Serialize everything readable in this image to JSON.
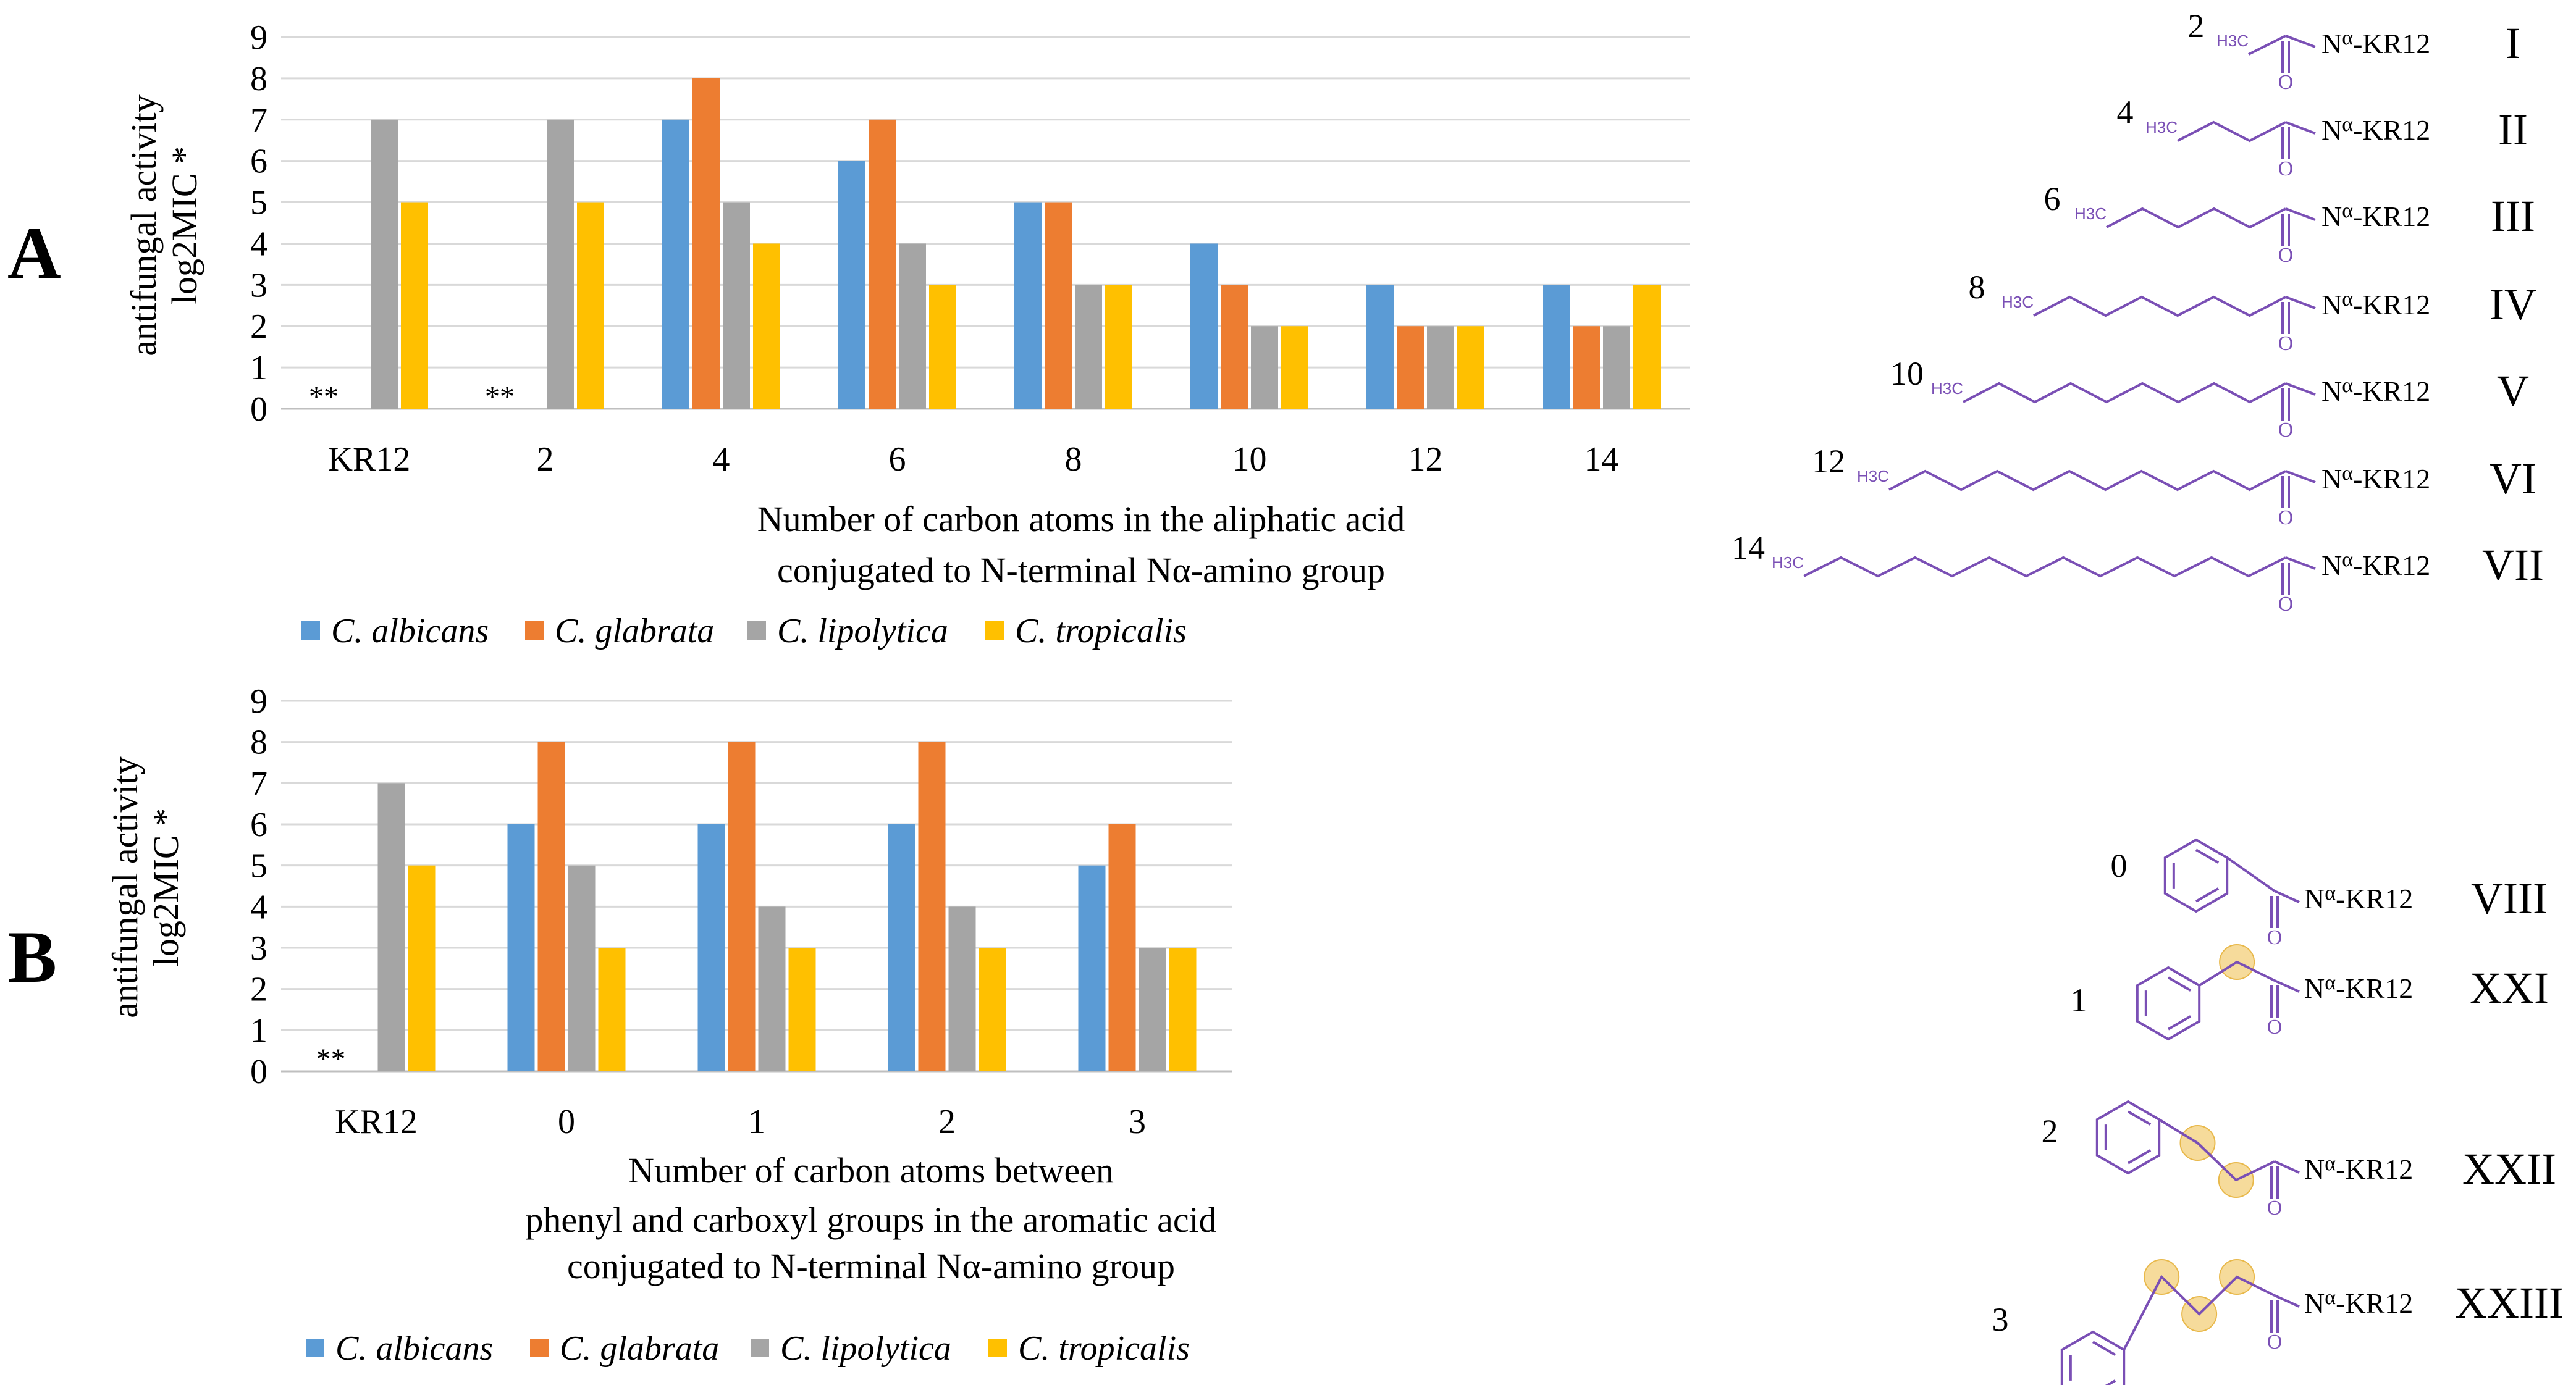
{
  "panels": [
    {
      "label": "A",
      "ylabel_line1": "antifungal activity",
      "ylabel_line2": "log2MIC *",
      "xlabel_lines": [
        "Number of carbon atoms in the aliphatic acid",
        "conjugated to N-terminal Nα-amino group"
      ],
      "not_active_marker": "**"
    },
    {
      "label": "B",
      "ylabel_line1": "antifungal activity",
      "ylabel_line2": "log2MIC *",
      "xlabel_lines": [
        "Number of carbon atoms between",
        "phenyl and carboxyl groups in the aromatic acid",
        "conjugated to N-terminal Nα-amino group"
      ],
      "not_active_marker": "**"
    }
  ],
  "colors": {
    "C_albicans": "#5b9bd5",
    "C_glabrata": "#ed7d31",
    "C_lipolytica": "#a5a5a5",
    "C_tropicalis": "#ffc000",
    "structure": "#7a4fb5",
    "highlight": "#f5d58a"
  },
  "chart_data": [
    {
      "type": "bar",
      "title": "A",
      "categories": [
        "KR12",
        "2",
        "4",
        "6",
        "8",
        "10",
        "12",
        "14"
      ],
      "series": [
        {
          "name": "C. albicans",
          "values": [
            0,
            0,
            7,
            6,
            5,
            4,
            3,
            3
          ]
        },
        {
          "name": "C. glabrata",
          "values": [
            0,
            0,
            8,
            7,
            5,
            3,
            2,
            2
          ]
        },
        {
          "name": "C. lipolytica",
          "values": [
            7,
            7,
            5,
            4,
            3,
            2,
            2,
            2
          ]
        },
        {
          "name": "C. tropicalis",
          "values": [
            5,
            5,
            4,
            3,
            3,
            2,
            2,
            3
          ]
        }
      ],
      "xlabel": "Number of carbon atoms in the aliphatic acid conjugated to N-terminal Nα-amino group",
      "ylabel": "antifungal activity log2MIC *",
      "ylim": [
        0,
        9
      ],
      "yticks": [
        "0",
        "1",
        "2",
        "3",
        "4",
        "5",
        "6",
        "7",
        "8",
        "9"
      ],
      "grid": true,
      "legend": "bottom-left",
      "annotations": [
        {
          "category": "KR12",
          "text": "**"
        },
        {
          "category": "2",
          "text": "**"
        }
      ]
    },
    {
      "type": "bar",
      "title": "B",
      "categories": [
        "KR12",
        "0",
        "1",
        "2",
        "3"
      ],
      "series": [
        {
          "name": "C. albicans",
          "values": [
            0,
            6,
            6,
            6,
            5
          ]
        },
        {
          "name": "C. glabrata",
          "values": [
            0,
            8,
            8,
            8,
            6
          ]
        },
        {
          "name": "C. lipolytica",
          "values": [
            7,
            5,
            4,
            4,
            3
          ]
        },
        {
          "name": "C. tropicalis",
          "values": [
            5,
            3,
            3,
            3,
            3
          ]
        }
      ],
      "xlabel": "Number of carbon atoms between phenyl and carboxyl groups in the aromatic acid conjugated to N-terminal Nα-amino group",
      "ylabel": "antifungal activity log2MIC *",
      "ylim": [
        0,
        9
      ],
      "yticks": [
        "0",
        "1",
        "2",
        "3",
        "4",
        "5",
        "6",
        "7",
        "8",
        "9"
      ],
      "grid": true,
      "legend": "bottom-left",
      "annotations": [
        {
          "category": "KR12",
          "text": "**"
        }
      ]
    }
  ],
  "structures_A": [
    {
      "carbons": "2",
      "n": 2,
      "h3c": "H3C",
      "amide": "Nα-KR12",
      "roman": "I"
    },
    {
      "carbons": "4",
      "n": 4,
      "h3c": "H3C",
      "amide": "Nα-KR12",
      "roman": "II"
    },
    {
      "carbons": "6",
      "n": 6,
      "h3c": "H3C",
      "amide": "Nα-KR12",
      "roman": "III"
    },
    {
      "carbons": "8",
      "n": 8,
      "h3c": "H3C",
      "amide": "Nα-KR12",
      "roman": "IV"
    },
    {
      "carbons": "10",
      "n": 10,
      "h3c": "H3C",
      "amide": "Nα-KR12",
      "roman": "V"
    },
    {
      "carbons": "12",
      "n": 12,
      "h3c": "H3C",
      "amide": "Nα-KR12",
      "roman": "VI"
    },
    {
      "carbons": "14",
      "n": 14,
      "h3c": "H3C",
      "amide": "Nα-KR12",
      "roman": "VII"
    }
  ],
  "structures_B": [
    {
      "carbons": "0",
      "n": 0,
      "amide": "Nα-KR12",
      "roman": "VIII"
    },
    {
      "carbons": "1",
      "n": 1,
      "amide": "Nα-KR12",
      "roman": "XXI"
    },
    {
      "carbons": "2",
      "n": 2,
      "amide": "Nα-KR12",
      "roman": "XXII"
    },
    {
      "carbons": "3",
      "n": 3,
      "amide": "Nα-KR12",
      "roman": "XXIII"
    }
  ]
}
